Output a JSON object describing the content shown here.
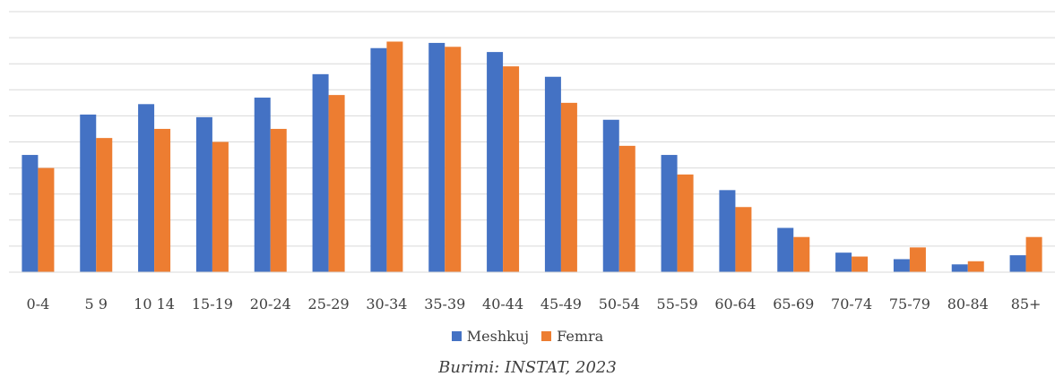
{
  "chart_data": {
    "type": "bar",
    "categories": [
      "0-4",
      "5 9",
      "10 14",
      "15-19",
      "20-24",
      "25-29",
      "30-34",
      "35-39",
      "40-44",
      "45-49",
      "50-54",
      "55-59",
      "60-64",
      "65-69",
      "70-74",
      "75-79",
      "80-84",
      "85+"
    ],
    "series": [
      {
        "name": "Meshkuj",
        "color": "#4472C4",
        "values": [
          4.5,
          6.05,
          6.45,
          5.95,
          6.7,
          7.6,
          8.6,
          8.8,
          8.45,
          7.5,
          5.85,
          4.5,
          3.15,
          1.7,
          0.75,
          0.5,
          0.3,
          0.65
        ]
      },
      {
        "name": "Femra",
        "color": "#ED7D31",
        "values": [
          4.0,
          5.15,
          5.5,
          5.0,
          5.5,
          6.8,
          8.85,
          8.65,
          7.9,
          6.5,
          4.85,
          3.75,
          2.5,
          1.35,
          0.6,
          0.95,
          0.42,
          1.35
        ]
      }
    ],
    "ylim": [
      0,
      10
    ],
    "grid": true,
    "legend": "bottom"
  },
  "source": "Burimi: INSTAT, 2023"
}
